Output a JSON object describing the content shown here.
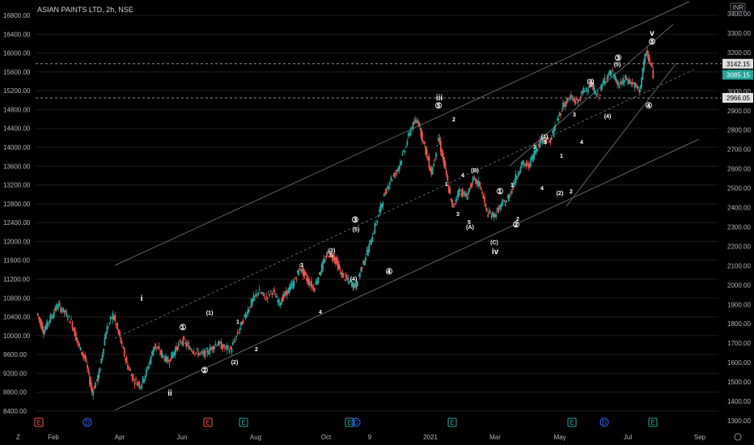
{
  "header": {
    "title": "ASIAN PAINTS LTD, 2h, NSE"
  },
  "currency_badge": "INR",
  "colors": {
    "up": "#26a69a",
    "down": "#ef5350",
    "bg": "#000000",
    "grid": "#1c1c1c",
    "text": "#b2b5be",
    "channel": "#5d606b",
    "price_tag": "#26a69a",
    "level_tag": "#e0e0e0"
  },
  "icons": {
    "bottom_left": "z-icon",
    "bottom_right": "gear-icon"
  },
  "chart_data": {
    "type": "line",
    "title": "ASIAN PAINTS LTD, 2h, NSE",
    "left_axis": {
      "ticks": [
        "8400.00",
        "8800.00",
        "9200.00",
        "9600.00",
        "10000.00",
        "10400.00",
        "10800.00",
        "11200.00",
        "11600.00",
        "12000.00",
        "12400.00",
        "12800.00",
        "13200.00",
        "13600.00",
        "14000.00",
        "14400.00",
        "14800.00",
        "15200.00",
        "15600.00",
        "16000.00",
        "16400.00",
        "16800.00"
      ],
      "ylim": [
        8400,
        16800
      ]
    },
    "right_axis": {
      "ticks": [
        "1300.00",
        "1400.00",
        "1500.00",
        "1600.00",
        "1700.00",
        "1800.00",
        "1900.00",
        "2000.00",
        "2100.00",
        "2200.00",
        "2300.00",
        "2400.00",
        "2500.00",
        "2600.00",
        "2700.00",
        "2800.00",
        "2900.00",
        "3000.00",
        "3100.00",
        "3200.00",
        "3300.00",
        "3400.00"
      ],
      "ylim": [
        1300,
        3400
      ]
    },
    "x_ticks": [
      "Feb",
      "Apr",
      "Jun",
      "Aug",
      "Oct",
      "9",
      "2021",
      "Mar",
      "May",
      "Jul",
      "Sep"
    ],
    "price_levels": [
      {
        "label": "3142.15",
        "value": 3142.15
      },
      {
        "label": "3085.15",
        "value": 3085.15,
        "current": true
      },
      {
        "label": "2966.05",
        "value": 2966.05
      }
    ],
    "series": [
      {
        "values": [
          10480,
          10100,
          10380,
          10650,
          10500,
          10300,
          9800,
          9500,
          8800,
          9200,
          10100,
          10450,
          9950,
          9400,
          9050,
          8950,
          9300,
          9800,
          9600,
          9450,
          9700,
          9900,
          9750,
          9650,
          9600,
          9700,
          9850,
          9750,
          9700,
          10050,
          10400,
          10700,
          10950,
          10800,
          10950,
          10700,
          10900,
          11100,
          11450,
          11200,
          11000,
          11400,
          11750,
          11650,
          11300,
          11150,
          11050,
          11500,
          11900,
          12400,
          12900,
          13300,
          13500,
          13900,
          14400,
          14600,
          14000,
          13450,
          14200,
          13500,
          12700,
          13100,
          12950,
          13300,
          13200,
          12600,
          12550,
          12750,
          12900,
          13300,
          13650,
          13600,
          13950,
          14200,
          14100,
          14500,
          14900,
          15050,
          14950,
          15200,
          15350,
          15050,
          15450,
          15600,
          15300,
          15450,
          15350,
          15200,
          16050,
          15550
        ]
      }
    ],
    "channel_lines": 4,
    "wave_labels": [
      "i",
      "ii",
      "iii",
      "iv",
      "v",
      "①",
      "②",
      "③",
      "④",
      "⑤",
      "(1)",
      "(2)",
      "(3)",
      "(4)",
      "(5)",
      "(A)",
      "(B)",
      "(C)",
      "1",
      "2",
      "3",
      "4",
      "5"
    ],
    "events": [
      "E",
      "D",
      "E",
      "E",
      "E",
      "D",
      "E",
      "E",
      "D",
      "E"
    ]
  }
}
